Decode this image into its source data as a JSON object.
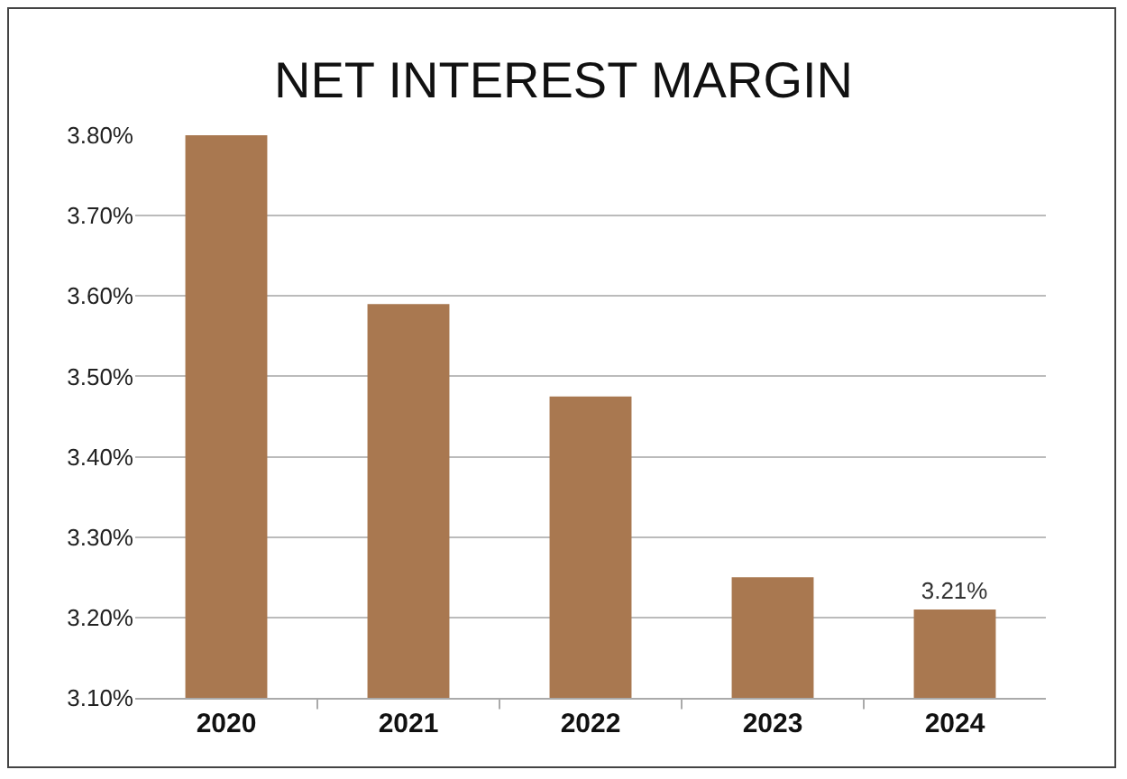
{
  "chart_data": {
    "type": "bar",
    "title": "NET INTEREST MARGIN",
    "categories": [
      "2020",
      "2021",
      "2022",
      "2023",
      "2024"
    ],
    "values": [
      3.8,
      3.59,
      3.475,
      3.25,
      3.21
    ],
    "value_labels": [
      null,
      null,
      null,
      null,
      "3.21%"
    ],
    "color": "#a97850",
    "ylim": [
      3.1,
      3.8
    ],
    "yticks": [
      {
        "value": 3.1,
        "label": "3.10%"
      },
      {
        "value": 3.2,
        "label": "3.20%"
      },
      {
        "value": 3.3,
        "label": "3.30%"
      },
      {
        "value": 3.4,
        "label": "3.40%"
      },
      {
        "value": 3.5,
        "label": "3.50%"
      },
      {
        "value": 3.6,
        "label": "3.60%"
      },
      {
        "value": 3.7,
        "label": "3.70%"
      },
      {
        "value": 3.8,
        "label": "3.80%"
      }
    ],
    "grid": "y"
  }
}
